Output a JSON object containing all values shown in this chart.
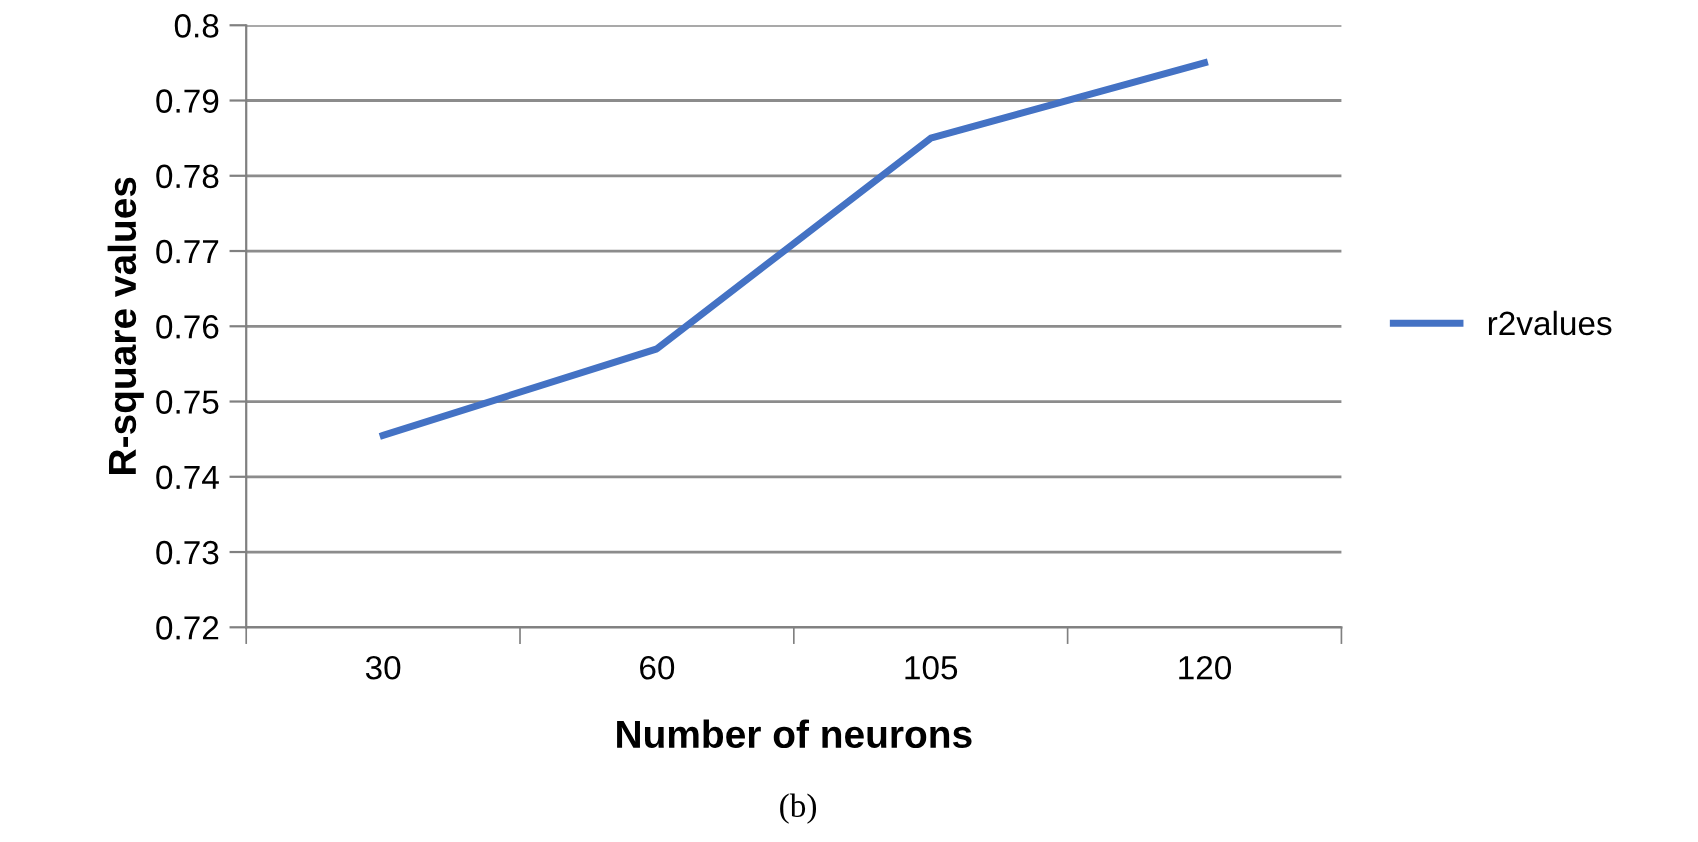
{
  "chart_data": {
    "type": "line",
    "xlabel": "Number of neurons",
    "ylabel": "R-square values",
    "categories": [
      "30",
      "60",
      "105",
      "120"
    ],
    "series": [
      {
        "name": "r2values",
        "color": "#4472c4",
        "values": [
          0.7455,
          0.757,
          0.785,
          0.795
        ]
      }
    ],
    "ylim": [
      0.72,
      0.8
    ],
    "yticks": [
      0.72,
      0.73,
      0.74,
      0.75,
      0.76,
      0.77,
      0.78,
      0.79,
      0.8
    ],
    "grid": "y",
    "legend": "right",
    "marker": "none",
    "line_style": "solid",
    "annotations": [
      "(b)"
    ]
  }
}
